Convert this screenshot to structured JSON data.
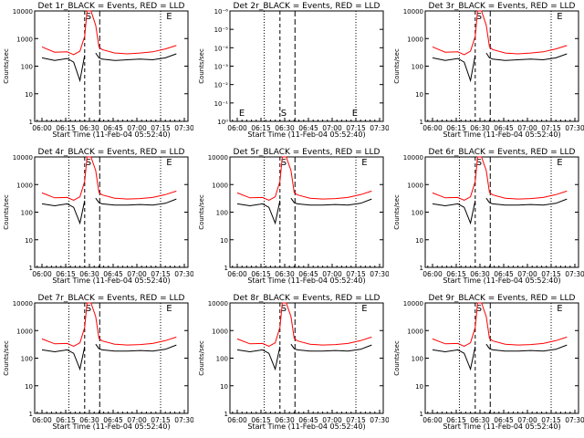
{
  "chart_data": [
    {
      "type": "line",
      "title": "Det 1r_BLACK = Events, RED = LLD",
      "xlabel": "Start Time (11-Feb-04 05:52:40)",
      "ylabel": "Counts/sec",
      "x_ticks": [
        "06:00",
        "06:15",
        "06:30",
        "06:45",
        "07:00",
        "07:15",
        "07:30"
      ],
      "y_ticks": [
        "1",
        "10",
        "100",
        "1000",
        "10000"
      ],
      "y_scale": "log",
      "ylim": [
        1,
        10000
      ],
      "markers": [
        "S",
        "E"
      ],
      "series": [
        {
          "name": "Events",
          "color": "#000000",
          "x": [
            0,
            8,
            16,
            20,
            24,
            27,
            28.5,
            31,
            34,
            36,
            38,
            46,
            54,
            62,
            70,
            78,
            85
          ],
          "y": [
            200,
            160,
            190,
            140,
            30,
            250,
            null,
            null,
            300,
            200,
            180,
            160,
            170,
            180,
            170,
            200,
            280
          ]
        },
        {
          "name": "LLD",
          "color": "#ff0000",
          "x": [
            0,
            8,
            16,
            20,
            24,
            27,
            28.5,
            31,
            34,
            36,
            38,
            46,
            54,
            62,
            70,
            78,
            85
          ],
          "y": [
            500,
            320,
            330,
            260,
            350,
            1200,
            12000,
            12000,
            3000,
            500,
            400,
            300,
            280,
            300,
            330,
            420,
            560
          ]
        }
      ]
    },
    {
      "type": "line",
      "title": "Det 2r_BLACK = Events, RED = LLD",
      "xlabel": "Start Time (11-Feb-04 05:52:40)",
      "ylabel": "Counts/sec",
      "x_ticks": [
        "06:00",
        "06:15",
        "06:30",
        "06:45",
        "07:00",
        "07:15",
        "07:30"
      ],
      "y_ticks": [
        "10⁰",
        "10⁻¹",
        "10⁻²",
        "10⁻³",
        "10⁻⁴",
        "10⁻⁵",
        "10⁻⁶"
      ],
      "y_scale": "log",
      "markers": [
        "E",
        "S",
        "E"
      ],
      "series": []
    },
    {
      "type": "line",
      "title": "Det 3r_BLACK = Events, RED = LLD",
      "xlabel": "Start Time (11-Feb-04 05:52:40)",
      "ylabel": "Counts/sec",
      "x_ticks": [
        "06:00",
        "06:15",
        "06:30",
        "06:45",
        "07:00",
        "07:15",
        "07:30"
      ],
      "y_ticks": [
        "1",
        "10",
        "100",
        "1000",
        "10000"
      ],
      "y_scale": "log",
      "ylim": [
        1,
        10000
      ],
      "markers": [
        "S",
        "E"
      ],
      "series": [
        {
          "name": "Events",
          "color": "#000000",
          "x": [
            0,
            8,
            16,
            20,
            24,
            27,
            28.5,
            31,
            34,
            36,
            38,
            46,
            54,
            62,
            70,
            78,
            85
          ],
          "y": [
            200,
            160,
            190,
            140,
            30,
            250,
            null,
            null,
            300,
            200,
            180,
            160,
            170,
            180,
            170,
            200,
            280
          ]
        },
        {
          "name": "LLD",
          "color": "#ff0000",
          "x": [
            0,
            8,
            16,
            20,
            24,
            27,
            28.5,
            31,
            34,
            36,
            38,
            46,
            54,
            62,
            70,
            78,
            85
          ],
          "y": [
            500,
            320,
            330,
            260,
            350,
            1200,
            12000,
            12000,
            3000,
            500,
            400,
            300,
            280,
            300,
            330,
            420,
            560
          ]
        }
      ]
    },
    {
      "type": "line",
      "title": "Det 4r_BLACK = Events, RED = LLD",
      "xlabel": "Start Time (11-Feb-04 05:52:40)",
      "ylabel": "Counts/sec",
      "x_ticks": [
        "06:00",
        "06:15",
        "06:30",
        "06:45",
        "07:00",
        "07:15",
        "07:30"
      ],
      "y_ticks": [
        "1",
        "10",
        "100",
        "1000",
        "10000"
      ],
      "y_scale": "log",
      "ylim": [
        1,
        10000
      ],
      "markers": [
        "S",
        "E"
      ],
      "series": [
        {
          "name": "Events",
          "color": "#000000",
          "x": [
            0,
            8,
            16,
            20,
            24,
            27,
            28.5,
            31,
            34,
            36,
            38,
            46,
            54,
            62,
            70,
            78,
            85
          ],
          "y": [
            200,
            170,
            200,
            150,
            40,
            260,
            null,
            null,
            320,
            220,
            200,
            180,
            180,
            190,
            180,
            210,
            300
          ]
        },
        {
          "name": "LLD",
          "color": "#ff0000",
          "x": [
            0,
            8,
            16,
            20,
            24,
            27,
            28.5,
            31,
            34,
            36,
            38,
            46,
            54,
            62,
            70,
            78,
            85
          ],
          "y": [
            500,
            330,
            340,
            270,
            360,
            1300,
            12000,
            12000,
            3200,
            520,
            420,
            320,
            300,
            310,
            340,
            430,
            580
          ]
        }
      ]
    },
    {
      "type": "line",
      "title": "Det 5r_BLACK = Events, RED = LLD",
      "xlabel": "Start Time (11-Feb-04 05:52:40)",
      "ylabel": "Counts/sec",
      "x_ticks": [
        "06:00",
        "06:15",
        "06:30",
        "06:45",
        "07:00",
        "07:15",
        "07:30"
      ],
      "y_ticks": [
        "1",
        "10",
        "100",
        "1000",
        "10000"
      ],
      "y_scale": "log",
      "ylim": [
        1,
        10000
      ],
      "markers": [
        "S",
        "E"
      ],
      "series": [
        {
          "name": "Events",
          "color": "#000000",
          "x": [
            0,
            8,
            16,
            20,
            24,
            27,
            28.5,
            31,
            34,
            36,
            38,
            46,
            54,
            62,
            70,
            78,
            85
          ],
          "y": [
            200,
            170,
            200,
            150,
            40,
            260,
            null,
            null,
            320,
            220,
            200,
            180,
            180,
            190,
            180,
            210,
            300
          ]
        },
        {
          "name": "LLD",
          "color": "#ff0000",
          "x": [
            0,
            8,
            16,
            20,
            24,
            27,
            28.5,
            31,
            34,
            36,
            38,
            46,
            54,
            62,
            70,
            78,
            85
          ],
          "y": [
            500,
            330,
            340,
            270,
            360,
            1300,
            12000,
            12000,
            3200,
            520,
            420,
            320,
            300,
            310,
            340,
            430,
            580
          ]
        }
      ]
    },
    {
      "type": "line",
      "title": "Det 6r_BLACK = Events, RED = LLD",
      "xlabel": "Start Time (11-Feb-04 05:52:40)",
      "ylabel": "Counts/sec",
      "x_ticks": [
        "06:00",
        "06:15",
        "06:30",
        "06:45",
        "07:00",
        "07:15",
        "07:30"
      ],
      "y_ticks": [
        "1",
        "10",
        "100",
        "1000",
        "10000"
      ],
      "y_scale": "log",
      "ylim": [
        1,
        10000
      ],
      "markers": [
        "S",
        "E"
      ],
      "series": [
        {
          "name": "Events",
          "color": "#000000",
          "x": [
            0,
            8,
            16,
            20,
            24,
            27,
            28.5,
            31,
            34,
            36,
            38,
            46,
            54,
            62,
            70,
            78,
            85
          ],
          "y": [
            200,
            170,
            200,
            150,
            40,
            260,
            null,
            null,
            320,
            220,
            200,
            180,
            180,
            190,
            180,
            210,
            300
          ]
        },
        {
          "name": "LLD",
          "color": "#ff0000",
          "x": [
            0,
            8,
            16,
            20,
            24,
            27,
            28.5,
            31,
            34,
            36,
            38,
            46,
            54,
            62,
            70,
            78,
            85
          ],
          "y": [
            500,
            330,
            340,
            270,
            360,
            1300,
            12000,
            12000,
            3200,
            520,
            420,
            320,
            300,
            310,
            340,
            430,
            580
          ]
        }
      ]
    },
    {
      "type": "line",
      "title": "Det 7r_BLACK = Events, RED = LLD",
      "xlabel": "Start Time (11-Feb-04 05:52:40)",
      "ylabel": "Counts/sec",
      "x_ticks": [
        "06:00",
        "06:15",
        "06:30",
        "06:45",
        "07:00",
        "07:15",
        "07:30"
      ],
      "y_ticks": [
        "1",
        "10",
        "100",
        "1000",
        "10000"
      ],
      "y_scale": "log",
      "ylim": [
        1,
        10000
      ],
      "markers": [
        "S",
        "E"
      ],
      "series": [
        {
          "name": "Events",
          "color": "#000000",
          "x": [
            0,
            8,
            16,
            20,
            24,
            27,
            28.5,
            31,
            34,
            36,
            38,
            46,
            54,
            62,
            70,
            78,
            85
          ],
          "y": [
            200,
            170,
            200,
            150,
            40,
            260,
            null,
            null,
            320,
            220,
            200,
            180,
            180,
            190,
            180,
            210,
            300
          ]
        },
        {
          "name": "LLD",
          "color": "#ff0000",
          "x": [
            0,
            8,
            16,
            20,
            24,
            27,
            28.5,
            31,
            34,
            36,
            38,
            46,
            54,
            62,
            70,
            78,
            85
          ],
          "y": [
            500,
            330,
            340,
            270,
            360,
            1300,
            12000,
            12000,
            3200,
            520,
            420,
            320,
            300,
            310,
            340,
            430,
            580
          ]
        }
      ]
    },
    {
      "type": "line",
      "title": "Det 8r_BLACK = Events, RED = LLD",
      "xlabel": "Start Time (11-Feb-04 05:52:40)",
      "ylabel": "Counts/sec",
      "x_ticks": [
        "06:00",
        "06:15",
        "06:30",
        "06:45",
        "07:00",
        "07:15",
        "07:30"
      ],
      "y_ticks": [
        "1",
        "10",
        "100",
        "1000",
        "10000"
      ],
      "y_scale": "log",
      "ylim": [
        1,
        10000
      ],
      "markers": [
        "S",
        "E"
      ],
      "series": [
        {
          "name": "Events",
          "color": "#000000",
          "x": [
            0,
            8,
            16,
            20,
            24,
            27,
            28.5,
            31,
            34,
            36,
            38,
            46,
            54,
            62,
            70,
            78,
            85
          ],
          "y": [
            200,
            170,
            200,
            150,
            40,
            260,
            null,
            null,
            320,
            220,
            200,
            180,
            180,
            190,
            180,
            210,
            300
          ]
        },
        {
          "name": "LLD",
          "color": "#ff0000",
          "x": [
            0,
            8,
            16,
            20,
            24,
            27,
            28.5,
            31,
            34,
            36,
            38,
            46,
            54,
            62,
            70,
            78,
            85
          ],
          "y": [
            500,
            330,
            340,
            270,
            360,
            1300,
            12000,
            12000,
            3200,
            520,
            420,
            320,
            300,
            310,
            340,
            430,
            580
          ]
        }
      ]
    },
    {
      "type": "line",
      "title": "Det 9r_BLACK = Events, RED = LLD",
      "xlabel": "Start Time (11-Feb-04 05:52:40)",
      "ylabel": "Counts/sec",
      "x_ticks": [
        "06:00",
        "06:15",
        "06:30",
        "06:45",
        "07:00",
        "07:15",
        "07:30"
      ],
      "y_ticks": [
        "1",
        "10",
        "100",
        "1000",
        "10000"
      ],
      "y_scale": "log",
      "ylim": [
        1,
        10000
      ],
      "markers": [
        "S",
        "E"
      ],
      "series": [
        {
          "name": "Events",
          "color": "#000000",
          "x": [
            0,
            8,
            16,
            20,
            24,
            27,
            28.5,
            31,
            34,
            36,
            38,
            46,
            54,
            62,
            70,
            78,
            85
          ],
          "y": [
            200,
            170,
            200,
            150,
            40,
            260,
            null,
            null,
            320,
            220,
            200,
            180,
            180,
            190,
            180,
            210,
            300
          ]
        },
        {
          "name": "LLD",
          "color": "#ff0000",
          "x": [
            0,
            8,
            16,
            20,
            24,
            27,
            28.5,
            31,
            34,
            36,
            38,
            46,
            54,
            62,
            70,
            78,
            85
          ],
          "y": [
            500,
            330,
            340,
            270,
            360,
            1300,
            12000,
            12000,
            3200,
            520,
            420,
            320,
            300,
            310,
            340,
            430,
            580
          ]
        }
      ]
    }
  ]
}
